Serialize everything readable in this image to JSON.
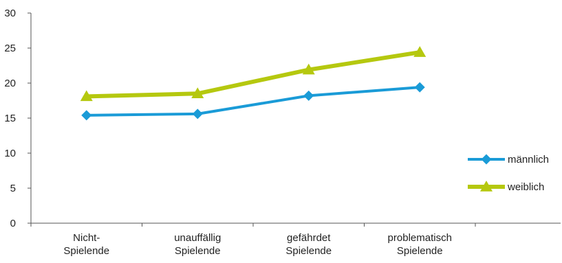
{
  "chart_data": {
    "type": "line",
    "categories": [
      [
        "Nicht-",
        "Spielende"
      ],
      [
        "unauffällig",
        "Spielende"
      ],
      [
        "gefährdet",
        "Spielende"
      ],
      [
        "problematisch",
        "Spielende"
      ]
    ],
    "series": [
      {
        "name": "männlich",
        "values": [
          15.4,
          15.6,
          18.2,
          19.4
        ],
        "color": "#1a9bd7",
        "marker": "diamond"
      },
      {
        "name": "weiblich",
        "values": [
          18.1,
          18.5,
          21.9,
          24.4
        ],
        "color": "#b5c80f",
        "marker": "triangle"
      }
    ],
    "ylim": [
      0,
      30
    ],
    "yticks": [
      0,
      5,
      10,
      15,
      20,
      25,
      30
    ],
    "grid": false,
    "legend_position": "right",
    "axis_color": "#555555"
  }
}
